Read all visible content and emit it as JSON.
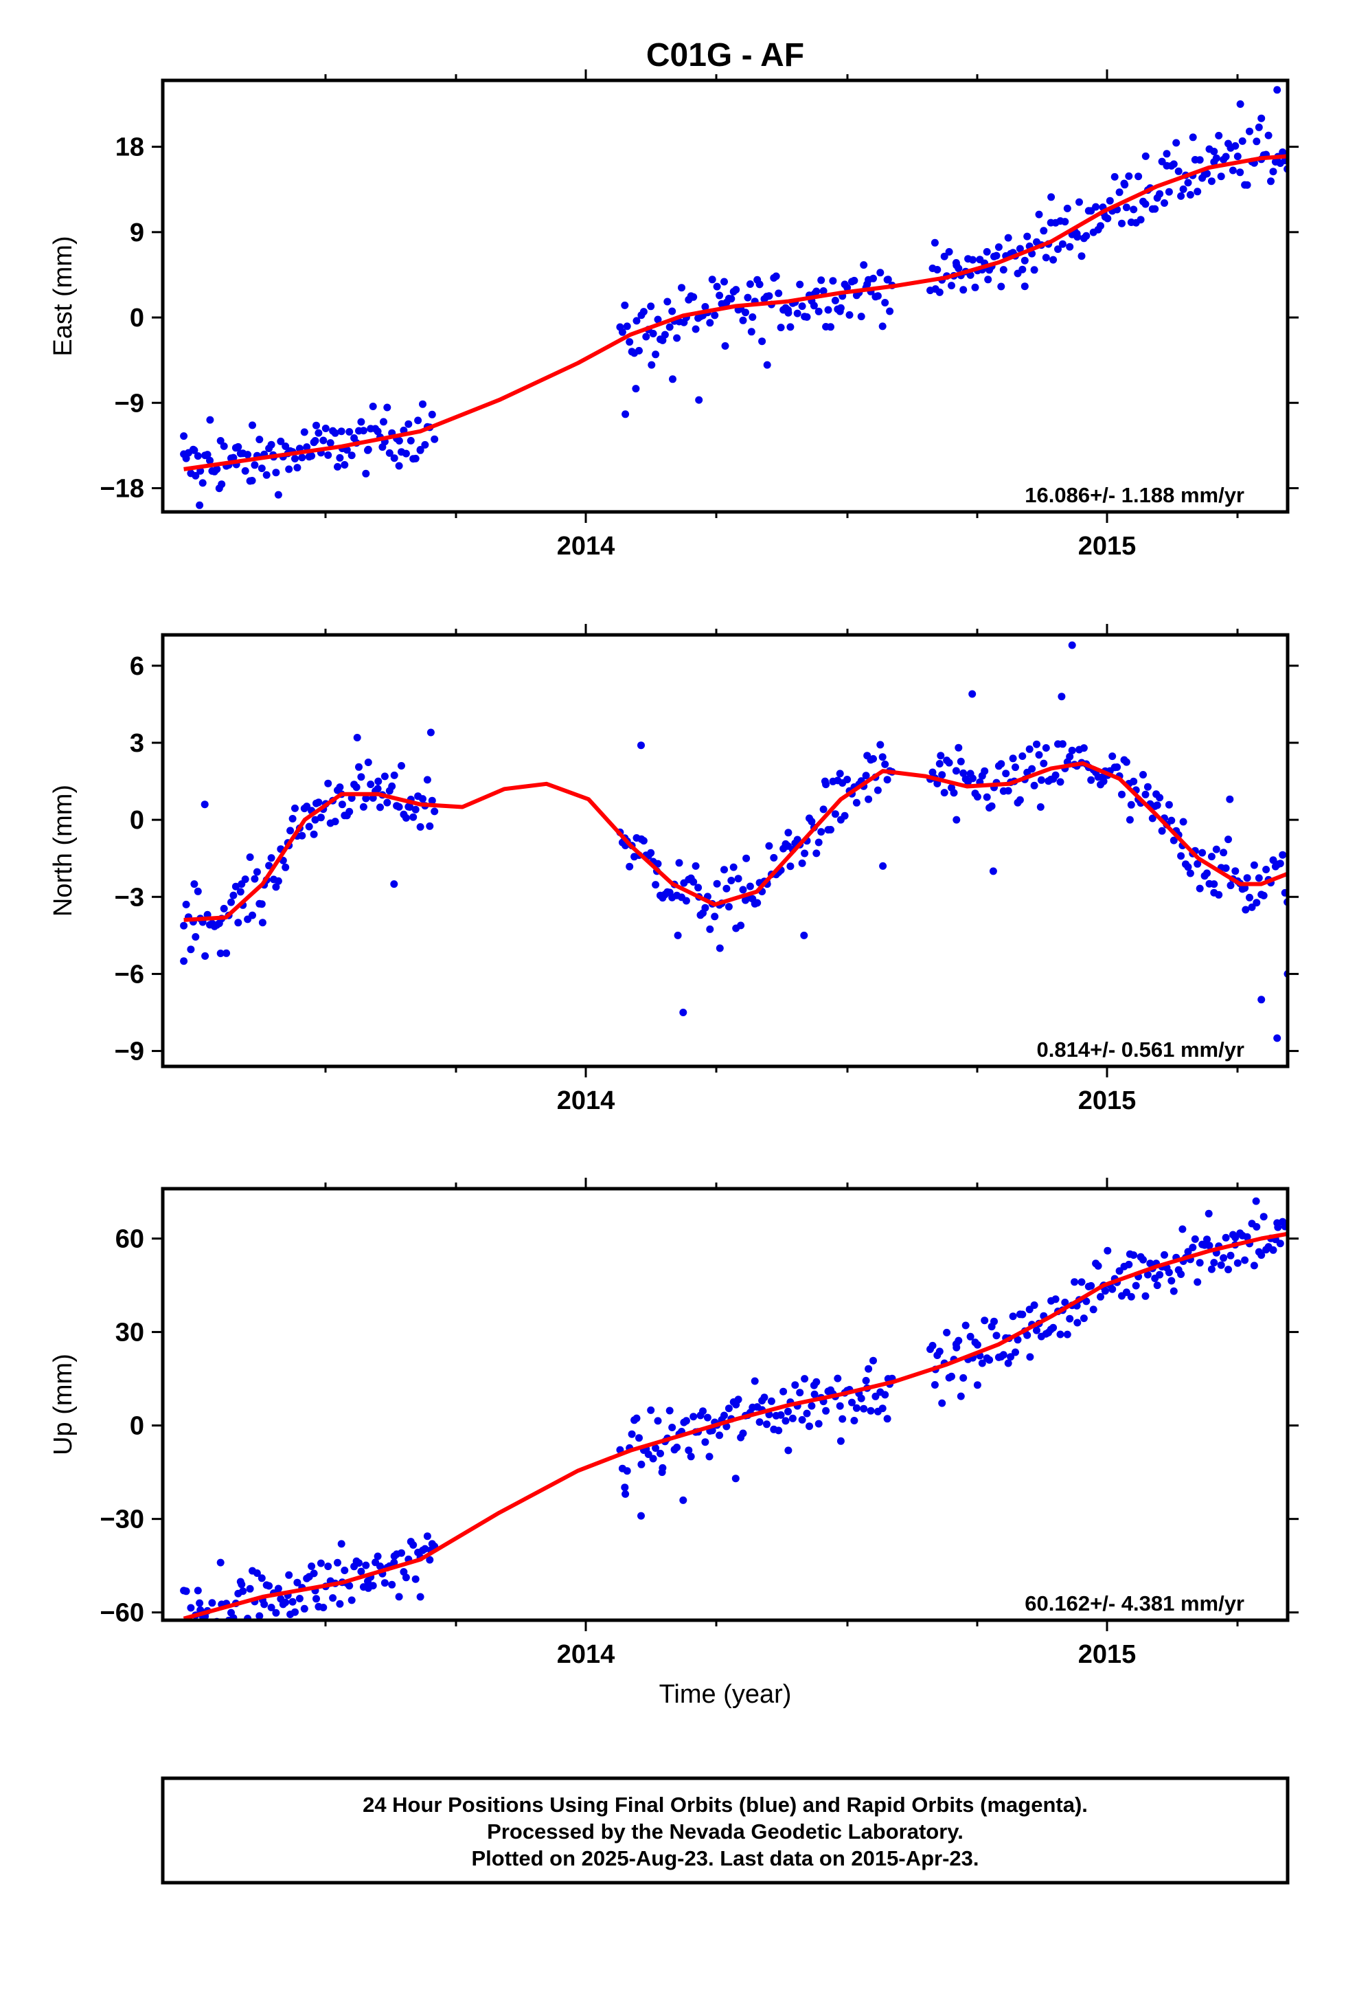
{
  "chart_data": {
    "title": "C01G - AF",
    "xlabel": "Time (year)",
    "x_ticks": [
      "2014",
      "2015"
    ],
    "xlim": [
      2013.21,
      2015.35
    ],
    "footer": [
      "24 Hour Positions Using Final Orbits (blue) and Rapid Orbits (magenta).",
      "Processed by the Nevada Geodetic Laboratory.",
      "Plotted on 2025-Aug-23. Last data on 2015-Apr-23."
    ],
    "colors": {
      "points": "#0000ee",
      "model": "#ff0000",
      "frame": "#000000"
    },
    "panels": [
      {
        "type": "scatter",
        "ylabel": "East (mm)",
        "ylim": [
          -20.5,
          25
        ],
        "yticks": [
          18,
          9,
          0,
          -9,
          -18
        ],
        "ytick_labels": [
          "18",
          "9",
          "0",
          "−9",
          "−18"
        ],
        "rate": "16.086+/- 1.188 mm/yr",
        "segments": [
          [
            2013.25,
            2013.73
          ],
          [
            2014.08,
            2014.6
          ],
          [
            2014.67,
            2015.35
          ]
        ],
        "points": [
          [
            2013.25,
            -12.5
          ],
          [
            2013.27,
            -14.0
          ],
          [
            2013.28,
            -19.8
          ],
          [
            2013.3,
            -10.8
          ],
          [
            2013.32,
            -13.0
          ],
          [
            2013.35,
            -15.5
          ],
          [
            2013.38,
            -17.2
          ],
          [
            2013.42,
            -14.5
          ],
          [
            2013.45,
            -16.0
          ],
          [
            2013.5,
            -13.0
          ],
          [
            2013.55,
            -12.0
          ],
          [
            2013.6,
            -14.0
          ],
          [
            2013.63,
            -11.0
          ],
          [
            2013.66,
            -13.0
          ],
          [
            2013.7,
            -14.0
          ],
          [
            2014.09,
            -10.2
          ],
          [
            2014.11,
            -7.5
          ],
          [
            2014.14,
            -5.0
          ],
          [
            2014.18,
            -6.5
          ],
          [
            2014.23,
            -8.7
          ],
          [
            2014.28,
            -3.0
          ],
          [
            2014.33,
            -1.5
          ],
          [
            2014.36,
            -5.0
          ],
          [
            2014.4,
            0.5
          ],
          [
            2014.45,
            2.5
          ],
          [
            2014.5,
            1.0
          ],
          [
            2014.55,
            3.5
          ],
          [
            2014.59,
            4.0
          ],
          [
            2014.68,
            3.0
          ],
          [
            2014.72,
            5.5
          ],
          [
            2014.78,
            4.0
          ],
          [
            2014.85,
            6.0
          ],
          [
            2014.9,
            12.7
          ],
          [
            2014.95,
            8.5
          ],
          [
            2015.0,
            11.0
          ],
          [
            2015.04,
            14.0
          ],
          [
            2015.08,
            17.0
          ],
          [
            2015.12,
            16.0
          ],
          [
            2015.17,
            19.0
          ],
          [
            2015.21,
            17.5
          ],
          [
            2015.26,
            22.5
          ],
          [
            2015.3,
            21.0
          ],
          [
            2015.33,
            24.0
          ]
        ],
        "model": [
          [
            2013.25,
            -16.0
          ],
          [
            2013.4,
            -14.8
          ],
          [
            2013.55,
            -13.6
          ],
          [
            2013.7,
            -12.0
          ],
          [
            2013.85,
            -8.7
          ],
          [
            2014.0,
            -4.8
          ],
          [
            2014.1,
            -1.8
          ],
          [
            2014.2,
            0.2
          ],
          [
            2014.3,
            1.2
          ],
          [
            2014.4,
            1.7
          ],
          [
            2014.5,
            2.6
          ],
          [
            2014.6,
            3.3
          ],
          [
            2014.7,
            4.2
          ],
          [
            2014.8,
            5.8
          ],
          [
            2014.9,
            8.0
          ],
          [
            2015.0,
            11.2
          ],
          [
            2015.1,
            13.8
          ],
          [
            2015.2,
            15.8
          ],
          [
            2015.3,
            16.8
          ],
          [
            2015.35,
            17.0
          ]
        ]
      },
      {
        "type": "scatter",
        "ylabel": "North (mm)",
        "ylim": [
          -9.6,
          7.2
        ],
        "yticks": [
          6,
          3,
          0,
          -3,
          -6,
          -9
        ],
        "ytick_labels": [
          "6",
          "3",
          "0",
          "−3",
          "−6",
          "−9"
        ],
        "rate": "0.814+/- 0.561 mm/yr",
        "segments": [
          [
            2013.25,
            2013.73
          ],
          [
            2014.08,
            2014.6
          ],
          [
            2014.67,
            2015.35
          ]
        ],
        "points": [
          [
            2013.25,
            -5.5
          ],
          [
            2013.27,
            -2.5
          ],
          [
            2013.29,
            0.6
          ],
          [
            2013.32,
            -5.2
          ],
          [
            2013.36,
            -2.5
          ],
          [
            2013.4,
            -4.0
          ],
          [
            2013.45,
            -1.0
          ],
          [
            2013.5,
            0.0
          ],
          [
            2013.55,
            1.0
          ],
          [
            2013.58,
            3.2
          ],
          [
            2013.62,
            1.5
          ],
          [
            2013.65,
            -2.5
          ],
          [
            2013.68,
            0.5
          ],
          [
            2013.72,
            3.4
          ],
          [
            2014.09,
            -1.0
          ],
          [
            2014.12,
            2.9
          ],
          [
            2014.15,
            -2.0
          ],
          [
            2014.19,
            -4.5
          ],
          [
            2014.2,
            -7.5
          ],
          [
            2014.23,
            -3.0
          ],
          [
            2014.27,
            -5.0
          ],
          [
            2014.32,
            -1.5
          ],
          [
            2014.36,
            -2.5
          ],
          [
            2014.4,
            -0.5
          ],
          [
            2014.43,
            -4.5
          ],
          [
            2014.47,
            1.5
          ],
          [
            2014.5,
            0.0
          ],
          [
            2014.55,
            2.5
          ],
          [
            2014.58,
            -1.8
          ],
          [
            2014.69,
            2.5
          ],
          [
            2014.72,
            0.0
          ],
          [
            2014.75,
            4.9
          ],
          [
            2014.79,
            -2.0
          ],
          [
            2014.83,
            1.5
          ],
          [
            2014.88,
            0.5
          ],
          [
            2014.92,
            4.8
          ],
          [
            2014.94,
            6.8
          ],
          [
            2015.0,
            1.5
          ],
          [
            2015.05,
            0.0
          ],
          [
            2015.1,
            1.0
          ],
          [
            2015.15,
            -1.0
          ],
          [
            2015.21,
            -2.5
          ],
          [
            2015.24,
            0.8
          ],
          [
            2015.27,
            -3.5
          ],
          [
            2015.3,
            -7.0
          ],
          [
            2015.33,
            -8.5
          ],
          [
            2015.35,
            -6.0
          ]
        ],
        "model": [
          [
            2013.25,
            -3.9
          ],
          [
            2013.33,
            -3.8
          ],
          [
            2013.4,
            -2.5
          ],
          [
            2013.48,
            0.0
          ],
          [
            2013.55,
            1.0
          ],
          [
            2013.62,
            1.0
          ],
          [
            2013.7,
            0.6
          ],
          [
            2013.78,
            0.5
          ],
          [
            2013.86,
            1.2
          ],
          [
            2013.94,
            1.4
          ],
          [
            2014.02,
            0.8
          ],
          [
            2014.1,
            -1.0
          ],
          [
            2014.18,
            -2.5
          ],
          [
            2014.26,
            -3.3
          ],
          [
            2014.34,
            -2.8
          ],
          [
            2014.42,
            -1.0
          ],
          [
            2014.5,
            0.8
          ],
          [
            2014.58,
            1.9
          ],
          [
            2014.66,
            1.7
          ],
          [
            2014.74,
            1.3
          ],
          [
            2014.82,
            1.4
          ],
          [
            2014.9,
            2.0
          ],
          [
            2014.96,
            2.2
          ],
          [
            2015.03,
            1.6
          ],
          [
            2015.1,
            0.2
          ],
          [
            2015.18,
            -1.5
          ],
          [
            2015.26,
            -2.5
          ],
          [
            2015.3,
            -2.5
          ],
          [
            2015.35,
            -2.1
          ]
        ]
      },
      {
        "type": "scatter",
        "ylabel": "Up (mm)",
        "ylim": [
          -62.5,
          76
        ],
        "yticks": [
          60,
          30,
          0,
          -30,
          -60
        ],
        "ytick_labels": [
          "60",
          "30",
          "0",
          "−30",
          "−60"
        ],
        "rate": "60.162+/- 4.381 mm/yr",
        "segments": [
          [
            2013.25,
            2013.73
          ],
          [
            2014.08,
            2014.6
          ],
          [
            2014.67,
            2015.35
          ]
        ],
        "points": [
          [
            2013.25,
            -53.0
          ],
          [
            2013.28,
            -57.0
          ],
          [
            2013.32,
            -44.0
          ],
          [
            2013.36,
            -51.0
          ],
          [
            2013.4,
            -56.0
          ],
          [
            2013.45,
            -48.0
          ],
          [
            2013.5,
            -53.0
          ],
          [
            2013.55,
            -38.0
          ],
          [
            2013.6,
            -50.0
          ],
          [
            2013.65,
            -44.0
          ],
          [
            2013.7,
            -55.0
          ],
          [
            2013.72,
            -40.0
          ],
          [
            2014.09,
            -22.0
          ],
          [
            2014.12,
            -29.0
          ],
          [
            2014.16,
            -15.0
          ],
          [
            2014.2,
            -24.0
          ],
          [
            2014.25,
            -10.0
          ],
          [
            2014.3,
            -17.0
          ],
          [
            2014.35,
            5.0
          ],
          [
            2014.4,
            -8.0
          ],
          [
            2014.45,
            10.0
          ],
          [
            2014.5,
            -5.0
          ],
          [
            2014.55,
            12.0
          ],
          [
            2014.59,
            15.0
          ],
          [
            2014.68,
            18.0
          ],
          [
            2014.72,
            25.0
          ],
          [
            2014.76,
            13.0
          ],
          [
            2014.82,
            28.0
          ],
          [
            2014.86,
            22.0
          ],
          [
            2014.9,
            40.0
          ],
          [
            2014.95,
            33.0
          ],
          [
            2015.0,
            45.0
          ],
          [
            2015.05,
            55.0
          ],
          [
            2015.1,
            52.0
          ],
          [
            2015.15,
            63.0
          ],
          [
            2015.2,
            68.0
          ],
          [
            2015.25,
            58.0
          ],
          [
            2015.29,
            72.0
          ],
          [
            2015.33,
            65.0
          ]
        ],
        "model": [
          [
            2013.25,
            -62.0
          ],
          [
            2013.4,
            -55.0
          ],
          [
            2013.55,
            -50.5
          ],
          [
            2013.7,
            -43.0
          ],
          [
            2013.85,
            -28.0
          ],
          [
            2014.0,
            -14.5
          ],
          [
            2014.1,
            -8.0
          ],
          [
            2014.2,
            -3.0
          ],
          [
            2014.3,
            2.0
          ],
          [
            2014.4,
            6.5
          ],
          [
            2014.5,
            10.0
          ],
          [
            2014.6,
            14.0
          ],
          [
            2014.7,
            19.5
          ],
          [
            2014.8,
            26.0
          ],
          [
            2014.9,
            35.0
          ],
          [
            2015.0,
            45.0
          ],
          [
            2015.1,
            51.0
          ],
          [
            2015.2,
            56.0
          ],
          [
            2015.3,
            60.0
          ],
          [
            2015.35,
            61.5
          ]
        ]
      }
    ]
  }
}
